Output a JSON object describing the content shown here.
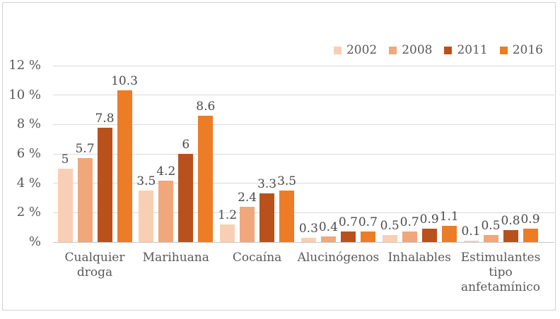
{
  "colors": {
    "background": "#FFFFFF",
    "frame_border": "#D2D2D2",
    "gridline": "#D9D9D9",
    "axis_baseline": "#C6C6C6",
    "axis_text": "#595959",
    "value_label_text": "#4A4A4A"
  },
  "chart_data": {
    "type": "bar",
    "title": "",
    "xlabel": "",
    "ylabel": "",
    "ylim": [
      0,
      12
    ],
    "grid": "horizontal",
    "legend_position": "top-right",
    "value_labels_shown": true,
    "categories": [
      "Cualquier droga",
      "Marihuana",
      "Cocaína",
      "Alucinógenos",
      "Inhalables",
      "Estimulantes tipo anfetamínico"
    ],
    "series": [
      {
        "name": "2002",
        "color": "#F8CFB4",
        "values": [
          5,
          3.5,
          1.2,
          0.3,
          0.5,
          0.1
        ]
      },
      {
        "name": "2008",
        "color": "#F0A77B",
        "values": [
          5.7,
          4.2,
          2.4,
          0.4,
          0.7,
          0.5
        ]
      },
      {
        "name": "2011",
        "color": "#B9511C",
        "values": [
          7.8,
          6,
          3.3,
          0.7,
          0.9,
          0.8
        ]
      },
      {
        "name": "2016",
        "color": "#EC7C26",
        "values": [
          10.3,
          8.6,
          3.5,
          0.7,
          1.1,
          0.9
        ]
      }
    ],
    "y_ticks": [
      {
        "value": 12,
        "label": "12 %"
      },
      {
        "value": 10,
        "label": "10 %"
      },
      {
        "value": 8,
        "label": "8 %"
      },
      {
        "value": 6,
        "label": "6 %"
      },
      {
        "value": 4,
        "label": "4 %"
      },
      {
        "value": 2,
        "label": "2 %"
      },
      {
        "value": 0,
        "label": "%"
      }
    ]
  }
}
